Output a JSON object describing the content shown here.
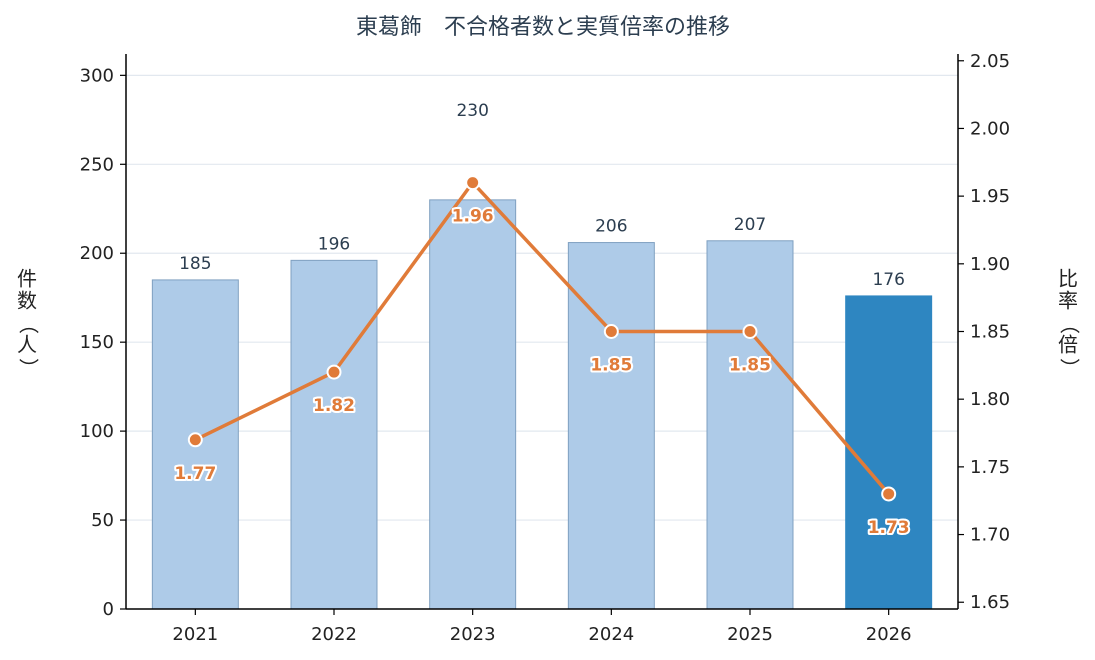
{
  "chart_data": {
    "type": "bar",
    "title": "東葛飾　不合格者数と実質倍率の推移",
    "categories": [
      "2021",
      "2022",
      "2023",
      "2024",
      "2025",
      "2026"
    ],
    "series": [
      {
        "name": "",
        "type": "bar",
        "axis": "left",
        "values": [
          185,
          196,
          230,
          206,
          207,
          176
        ]
      },
      {
        "name": "",
        "type": "line",
        "axis": "right",
        "values": [
          1.77,
          1.82,
          1.96,
          1.85,
          1.85,
          1.73
        ],
        "value_labels": [
          "1.77",
          "1.82",
          "1.96",
          "1.85",
          "1.85",
          "1.73"
        ]
      }
    ],
    "bar_value_labels": [
      "185",
      "196",
      "230",
      "206",
      "207",
      "176"
    ],
    "ylabel": "件数（人）",
    "y2label": "比率（倍）",
    "ylim": [
      0,
      312
    ],
    "y2lim": [
      1.645,
      2.055
    ],
    "yticks": [
      "0",
      "50",
      "100",
      "150",
      "200",
      "250",
      "300"
    ],
    "y2ticks": [
      "1.65",
      "1.70",
      "1.75",
      "1.80",
      "1.85",
      "1.90",
      "1.95",
      "2.00",
      "2.05"
    ],
    "grid": true,
    "highlight_category": "2026",
    "colors": {
      "bar": "#aecbe8",
      "bar_edge": "#7fa0c0",
      "bar_highlight": "#2e86c1",
      "line": "#e07b39",
      "grid": "#e2e8ef",
      "title": "#2c3e50",
      "bar_label": "#2c3e50"
    }
  }
}
